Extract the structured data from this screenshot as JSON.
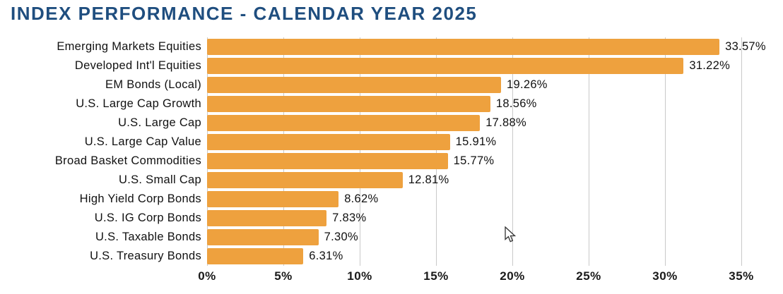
{
  "title": "INDEX PERFORMANCE - CALENDAR YEAR 2025",
  "chart_data": {
    "type": "bar",
    "orientation": "horizontal",
    "title": "INDEX PERFORMANCE - CALENDAR YEAR 2025",
    "categories": [
      "Emerging Markets Equities",
      "Developed Int'l Equities",
      "EM Bonds (Local)",
      "U.S. Large Cap Growth",
      "U.S. Large Cap",
      "U.S. Large Cap Value",
      "Broad Basket Commodities",
      "U.S. Small Cap",
      "High Yield Corp Bonds",
      "U.S. IG Corp Bonds",
      "U.S. Taxable Bonds",
      "U.S. Treasury Bonds"
    ],
    "values": [
      33.57,
      31.22,
      19.26,
      18.56,
      17.88,
      15.91,
      15.77,
      12.81,
      8.62,
      7.83,
      7.3,
      6.31
    ],
    "value_labels": [
      "33.57%",
      "31.22%",
      "19.26%",
      "18.56%",
      "17.88%",
      "15.91%",
      "15.77%",
      "12.81%",
      "8.62%",
      "7.83%",
      "7.30%",
      "6.31%"
    ],
    "x_tick_labels": [
      "0%",
      "5%",
      "10%",
      "15%",
      "20%",
      "25%",
      "30%",
      "35%"
    ],
    "x_tick_values": [
      0,
      5,
      10,
      15,
      20,
      25,
      30,
      35
    ],
    "xlim": [
      0,
      35
    ],
    "xlabel": "",
    "ylabel": "",
    "grid": "vertical",
    "legend": "none",
    "colors": {
      "bar": "#EEA13E",
      "title": "#1F4E7F",
      "gridline": "#C9C9C9",
      "label_text": "#111111"
    }
  }
}
